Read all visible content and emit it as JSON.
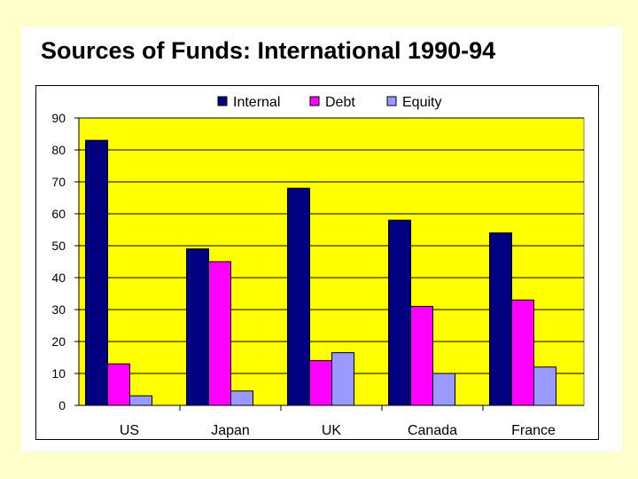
{
  "slide": {
    "title": "Sources of Funds: International 1990-94",
    "background": "#ffffcc"
  },
  "chart_data": {
    "type": "bar",
    "title": "",
    "xlabel": "",
    "ylabel": "",
    "categories": [
      "US",
      "Japan",
      "UK",
      "Canada",
      "France"
    ],
    "series": [
      {
        "name": "Internal",
        "color": "#000080",
        "values": [
          83,
          49,
          68,
          58,
          54
        ]
      },
      {
        "name": "Debt",
        "color": "#ff00ff",
        "values": [
          13,
          45,
          14,
          31,
          33
        ]
      },
      {
        "name": "Equity",
        "color": "#9999ff",
        "values": [
          3,
          4.5,
          16.5,
          10,
          12
        ]
      }
    ],
    "ylim": [
      0,
      90
    ],
    "yticks": [
      "0",
      "10",
      "20",
      "30",
      "40",
      "50",
      "60",
      "70",
      "80",
      "90"
    ],
    "grid": true,
    "plot_background": "#ffff00",
    "legend": "top-center"
  }
}
